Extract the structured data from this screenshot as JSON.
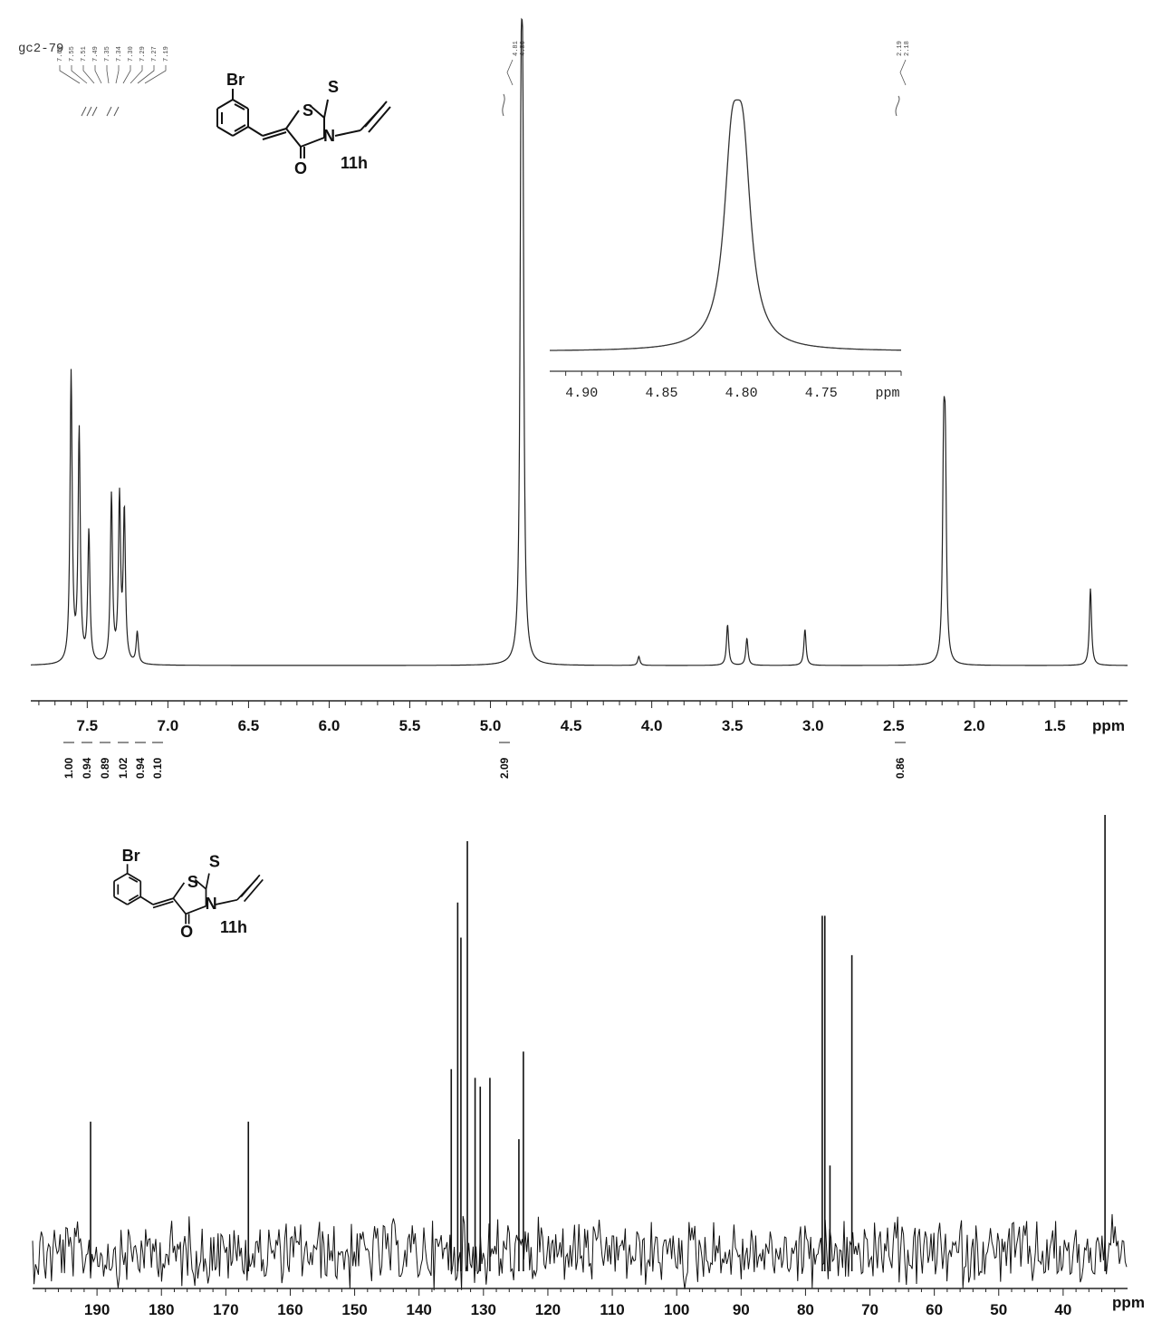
{
  "sample_label": "gc2-79",
  "compound": {
    "label": "11h",
    "atoms": {
      "br": "Br",
      "s_ring": "S",
      "s_thione": "S",
      "n": "N",
      "o": "O"
    }
  },
  "chart_data": [
    {
      "type": "line",
      "spectrum": "1H NMR",
      "xlabel": "ppm",
      "x_reversed": true,
      "xlim": [
        7.85,
        1.05
      ],
      "x_ticks": [
        7.5,
        7.0,
        6.5,
        6.0,
        5.5,
        5.0,
        4.5,
        4.0,
        3.5,
        3.0,
        2.5,
        2.0,
        1.5
      ],
      "x_tick_labels": [
        "7.5",
        "7.0",
        "6.5",
        "6.0",
        "5.5",
        "5.0",
        "4.5",
        "4.0",
        "3.5",
        "3.0",
        "2.5",
        "2.0",
        "1.5"
      ],
      "peak_labels": [
        "7.60",
        "7.55",
        "7.51",
        "7.49",
        "7.35",
        "7.34",
        "7.30",
        "7.29",
        "7.27",
        "7.19",
        "4.81",
        "4.80",
        "2.19",
        "2.18"
      ],
      "integrals": [
        {
          "value": "1.00",
          "ppm": 7.6
        },
        {
          "value": "0.94",
          "ppm": 7.55
        },
        {
          "value": "0.89",
          "ppm": 7.49
        },
        {
          "value": "1.02",
          "ppm": 7.35
        },
        {
          "value": "0.94",
          "ppm": 7.29
        },
        {
          "value": "0.10",
          "ppm": 7.19
        },
        {
          "value": "2.09",
          "ppm": 4.8
        },
        {
          "value": "0.86",
          "ppm": 2.18
        }
      ],
      "peaks": [
        {
          "ppm": 7.6,
          "height": 0.64
        },
        {
          "ppm": 7.55,
          "height": 0.51
        },
        {
          "ppm": 7.49,
          "height": 0.29
        },
        {
          "ppm": 7.35,
          "height": 0.37
        },
        {
          "ppm": 7.3,
          "height": 0.36
        },
        {
          "ppm": 7.27,
          "height": 0.33
        },
        {
          "ppm": 7.19,
          "height": 0.07
        },
        {
          "ppm": 4.81,
          "height": 0.99
        },
        {
          "ppm": 4.8,
          "height": 0.99
        },
        {
          "ppm": 4.08,
          "height": 0.02
        },
        {
          "ppm": 3.53,
          "height": 0.09
        },
        {
          "ppm": 3.41,
          "height": 0.06
        },
        {
          "ppm": 3.05,
          "height": 0.08
        },
        {
          "ppm": 2.19,
          "height": 0.42
        },
        {
          "ppm": 2.18,
          "height": 0.4
        },
        {
          "ppm": 1.28,
          "height": 0.17
        }
      ],
      "inset": {
        "xlabel": "ppm",
        "xlim": [
          4.92,
          4.7
        ],
        "x_ticks": [
          4.9,
          4.85,
          4.8,
          4.75
        ],
        "x_tick_labels": [
          "4.90",
          "4.85",
          "4.80",
          "4.75"
        ],
        "peaks": [
          {
            "ppm": 4.806,
            "height": 0.93
          },
          {
            "ppm": 4.799,
            "height": 0.93
          }
        ]
      }
    },
    {
      "type": "line",
      "spectrum": "13C NMR",
      "xlabel": "ppm",
      "x_reversed": true,
      "xlim": [
        200,
        30
      ],
      "x_ticks": [
        190,
        180,
        170,
        160,
        150,
        140,
        130,
        120,
        110,
        100,
        90,
        80,
        70,
        60,
        50,
        40
      ],
      "x_tick_labels": [
        "190",
        "180",
        "170",
        "160",
        "150",
        "140",
        "130",
        "120",
        "110",
        "100",
        "90",
        "80",
        "70",
        "60",
        "50",
        "40"
      ],
      "peaks": [
        {
          "ppm": 191.0,
          "height": 0.3
        },
        {
          "ppm": 166.5,
          "height": 0.3
        },
        {
          "ppm": 135.0,
          "height": 0.42
        },
        {
          "ppm": 134.0,
          "height": 0.8
        },
        {
          "ppm": 133.5,
          "height": 0.72
        },
        {
          "ppm": 132.5,
          "height": 0.94
        },
        {
          "ppm": 131.3,
          "height": 0.4
        },
        {
          "ppm": 130.5,
          "height": 0.38
        },
        {
          "ppm": 129.0,
          "height": 0.4
        },
        {
          "ppm": 124.5,
          "height": 0.26
        },
        {
          "ppm": 123.8,
          "height": 0.46
        },
        {
          "ppm": 77.4,
          "height": 0.77
        },
        {
          "ppm": 77.0,
          "height": 0.77
        },
        {
          "ppm": 76.2,
          "height": 0.2
        },
        {
          "ppm": 72.8,
          "height": 0.68
        },
        {
          "ppm": 33.5,
          "height": 1.0
        }
      ]
    }
  ]
}
